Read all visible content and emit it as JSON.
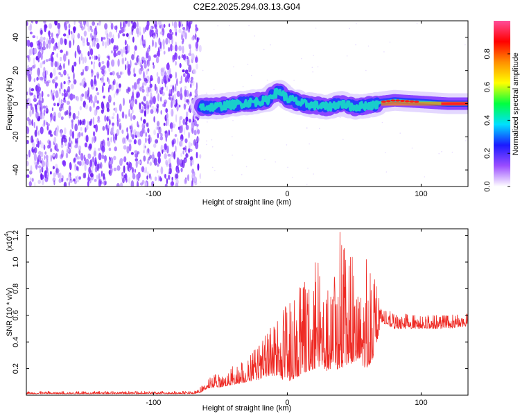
{
  "title": "C2E2.2025.294.03.13.G04",
  "chart_data": [
    {
      "type": "heatmap",
      "name": "spectrogram",
      "xlabel": "Height of straight line (km)",
      "ylabel": "Frequency (Hz)",
      "xlim": [
        -195,
        135
      ],
      "ylim": [
        -50,
        50
      ],
      "xticks": [
        -100,
        0,
        100
      ],
      "xtick_labels": [
        "-100",
        "0",
        "100"
      ],
      "yticks": [
        -40,
        -20,
        0,
        20,
        40
      ],
      "ytick_labels": [
        "-40",
        "-20",
        "0",
        "20",
        "40"
      ],
      "noise_region_end_km": -65,
      "signal_trace": {
        "x": [
          -65,
          -55,
          -45,
          -35,
          -25,
          -15,
          -10,
          -5,
          0,
          5,
          10,
          20,
          30,
          40,
          50,
          60,
          65,
          70,
          80,
          100,
          120,
          135
        ],
        "freq": [
          -2,
          -2,
          -1,
          0,
          1,
          2,
          6,
          7,
          3,
          2,
          0,
          -1,
          -2,
          0,
          -2,
          -1,
          -1,
          1,
          2,
          1,
          0,
          0
        ]
      },
      "colorbar": {
        "label": "Normalized spectral amplitude",
        "range": [
          0,
          1
        ],
        "ticks": [
          0.0,
          0.2,
          0.4,
          0.6,
          0.8
        ],
        "tick_labels": [
          "0.0",
          "0.2",
          "0.4",
          "0.6",
          "0.8"
        ],
        "colors": [
          "#ffffff",
          "#9b4dff",
          "#1a1aff",
          "#00e0ff",
          "#00ff40",
          "#ffff00",
          "#ff9000",
          "#ff0000",
          "#ff4d9a"
        ]
      }
    },
    {
      "type": "line",
      "name": "snr",
      "xlabel": "Height of straight line (km)",
      "ylabel": "SNR (10 * v/v)",
      "multiplier_label": "(x10",
      "multiplier_exp": "4",
      "multiplier_close": ")",
      "xlim": [
        -195,
        135
      ],
      "ylim": [
        0,
        1.25
      ],
      "xticks": [
        -100,
        0,
        100
      ],
      "xtick_labels": [
        "-100",
        "0",
        "100"
      ],
      "yticks": [
        0.2,
        0.4,
        0.6,
        0.8,
        1.0,
        1.2
      ],
      "ytick_labels": [
        "0.2",
        "0.4",
        "0.6",
        "0.8",
        "1.0",
        "1.2"
      ],
      "color": "#ee2a24",
      "series": {
        "name": "SNR",
        "x": [
          -195,
          -150,
          -100,
          -70,
          -65,
          -60,
          -50,
          -40,
          -30,
          -20,
          -10,
          0,
          10,
          20,
          25,
          30,
          40,
          50,
          60,
          65,
          68,
          70,
          80,
          100,
          120,
          135
        ],
        "low": [
          0.01,
          0.01,
          0.01,
          0.01,
          0.02,
          0.05,
          0.06,
          0.08,
          0.1,
          0.12,
          0.15,
          0.1,
          0.15,
          0.2,
          0.2,
          0.18,
          0.2,
          0.25,
          0.2,
          0.3,
          0.45,
          0.55,
          0.5,
          0.5,
          0.5,
          0.52
        ],
        "high": [
          0.03,
          0.03,
          0.03,
          0.03,
          0.06,
          0.12,
          0.18,
          0.22,
          0.28,
          0.4,
          0.55,
          0.7,
          0.85,
          1.0,
          1.15,
          0.95,
          1.25,
          1.0,
          1.05,
          0.9,
          0.75,
          0.65,
          0.62,
          0.6,
          0.6,
          0.62
        ]
      }
    }
  ]
}
